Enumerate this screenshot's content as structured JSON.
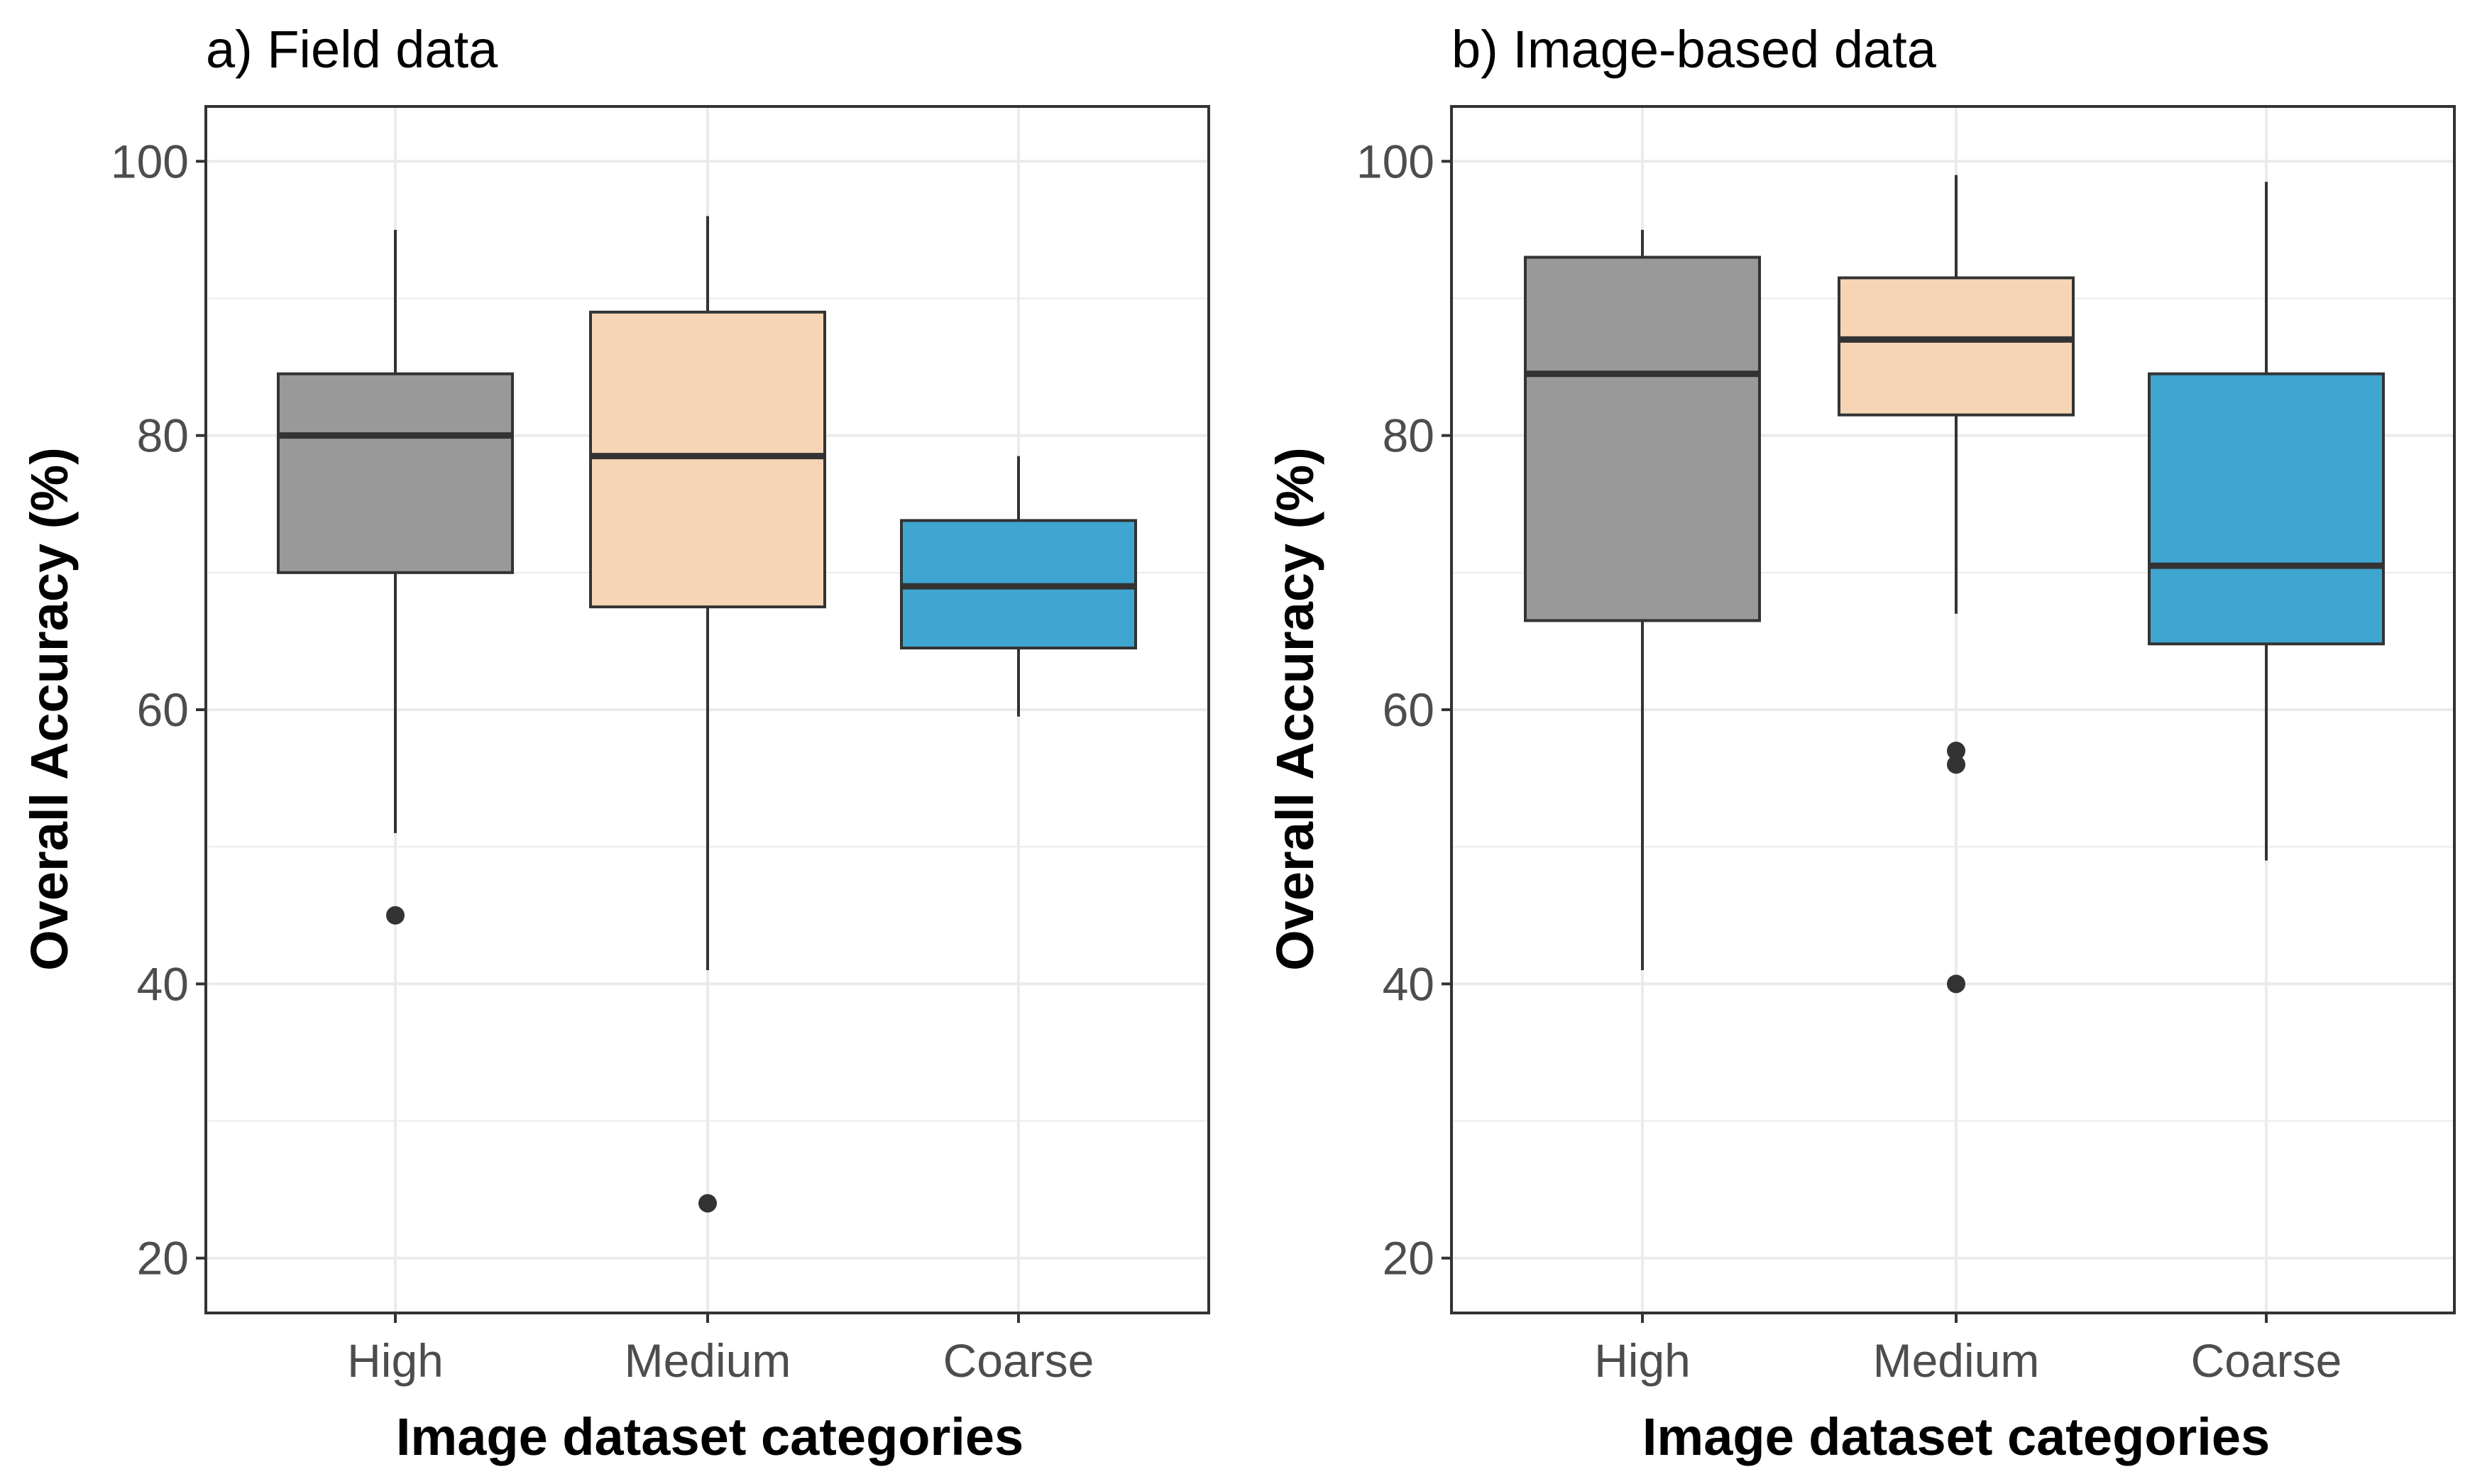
{
  "colors": {
    "High": "#999999",
    "Medium": "#f5d5b5",
    "Coarse": "#3fa6d1"
  },
  "chart_data": [
    {
      "type": "boxplot",
      "title": "a) Field data",
      "xlabel": "Image dataset categories",
      "ylabel": "Overall Accuracy (%)",
      "ylim": [
        16,
        104
      ],
      "yticks": [
        20,
        40,
        60,
        80,
        100
      ],
      "categories": [
        "High",
        "Medium",
        "Coarse"
      ],
      "boxes": [
        {
          "category": "High",
          "lower_whisker": 51,
          "q1": 70,
          "median": 80,
          "q3": 84.5,
          "upper_whisker": 95,
          "outliers": [
            45
          ]
        },
        {
          "category": "Medium",
          "lower_whisker": 41,
          "q1": 67.5,
          "median": 78.5,
          "q3": 89,
          "upper_whisker": 96,
          "outliers": [
            24
          ]
        },
        {
          "category": "Coarse",
          "lower_whisker": 59.5,
          "q1": 64.5,
          "median": 69,
          "q3": 73.8,
          "upper_whisker": 78.5,
          "outliers": []
        }
      ]
    },
    {
      "type": "boxplot",
      "title": "b) Image-based data",
      "xlabel": "Image dataset categories",
      "ylabel": "Overall Accuracy (%)",
      "ylim": [
        16,
        104
      ],
      "yticks": [
        20,
        40,
        60,
        80,
        100
      ],
      "categories": [
        "High",
        "Medium",
        "Coarse"
      ],
      "boxes": [
        {
          "category": "High",
          "lower_whisker": 41,
          "q1": 66.5,
          "median": 84.5,
          "q3": 93,
          "upper_whisker": 95,
          "outliers": []
        },
        {
          "category": "Medium",
          "lower_whisker": 67,
          "q1": 81.5,
          "median": 87,
          "q3": 91.5,
          "upper_whisker": 99,
          "outliers": [
            57,
            56,
            40
          ]
        },
        {
          "category": "Coarse",
          "lower_whisker": 49,
          "q1": 64.8,
          "median": 70.5,
          "q3": 84.5,
          "upper_whisker": 98.5,
          "outliers": []
        }
      ]
    }
  ]
}
